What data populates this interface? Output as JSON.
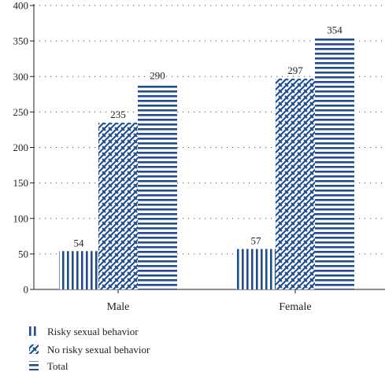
{
  "chart_data": {
    "type": "bar",
    "categories": [
      "Male",
      "Female"
    ],
    "series": [
      {
        "name": "Risky sexual behavior",
        "values": [
          54,
          57
        ],
        "pattern": "vertical-lines"
      },
      {
        "name": "No risky sexual behavior",
        "values": [
          235,
          297
        ],
        "pattern": "crosshatch"
      },
      {
        "name": "Total",
        "values": [
          290,
          354
        ],
        "pattern": "horizontal-lines"
      }
    ],
    "data_labels": [
      [
        "54",
        "57"
      ],
      [
        "235",
        "297"
      ],
      [
        "290",
        "354"
      ]
    ],
    "yticks": [
      0,
      50,
      100,
      150,
      200,
      250,
      300,
      350,
      400
    ],
    "ylim": [
      0,
      400
    ],
    "title": "",
    "xlabel": "",
    "ylabel": "",
    "grid": "horizontal-dotted",
    "legend_position": "bottom-left",
    "color": "#1f4e8c"
  }
}
